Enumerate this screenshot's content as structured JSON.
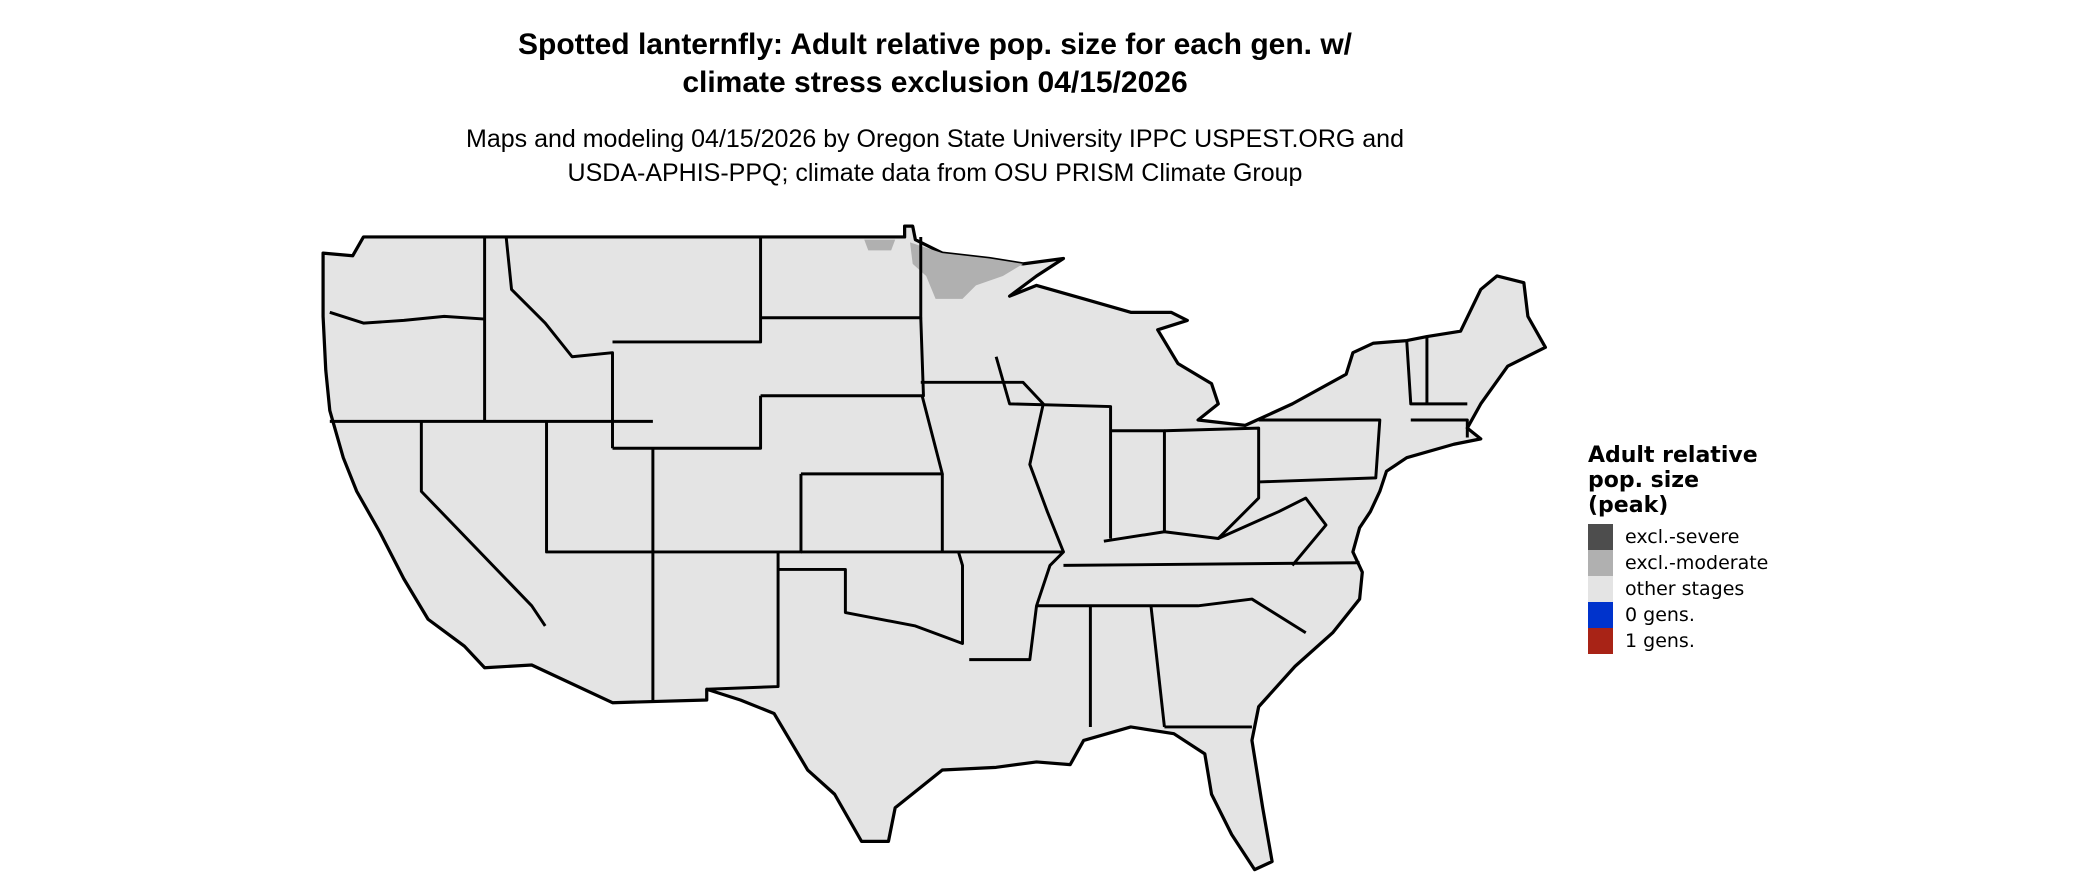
{
  "title": {
    "line1": "Spotted lanternfly: Adult relative pop. size for each gen. w/",
    "line2": "climate stress exclusion 04/15/2026"
  },
  "subtitle": {
    "line1": "Maps and modeling 04/15/2026 by Oregon State University IPPC USPEST.ORG and",
    "line2": "USDA-APHIS-PPQ; climate data from OSU PRISM Climate Group"
  },
  "map": {
    "region": "Contiguous United States",
    "fill_color": "#E4E4E4",
    "border_color": "#000000",
    "highlight_color": "#B0B0B0"
  },
  "legend": {
    "title_lines": [
      "Adult relative",
      "pop. size",
      "(peak)"
    ],
    "items": [
      {
        "label": "excl.-severe",
        "color": "#4D4D4D"
      },
      {
        "label": "excl.-moderate",
        "color": "#B0B0B0"
      },
      {
        "label": "other stages",
        "color": "#E4E4E4"
      },
      {
        "label": "0 gens.",
        "color": "#0033CC"
      },
      {
        "label": "1 gens.",
        "color": "#A82316"
      }
    ]
  }
}
